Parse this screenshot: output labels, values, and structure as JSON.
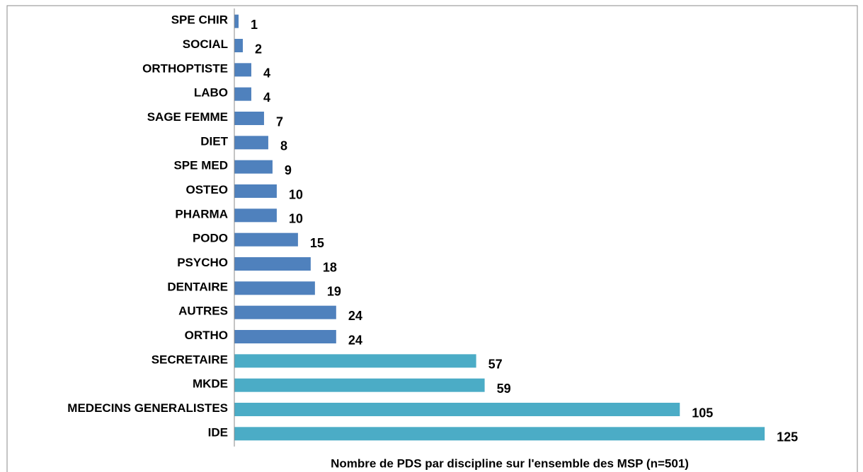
{
  "chart_data": {
    "type": "bar",
    "orientation": "horizontal",
    "title": "Nombre de PDS par discipline sur l'ensemble des MSP (n=501)",
    "categories": [
      "SPE CHIR",
      "SOCIAL",
      "ORTHOPTISTE",
      "LABO",
      "SAGE FEMME",
      "DIET",
      "SPE MED",
      "OSTEO",
      "PHARMA",
      "PODO",
      "PSYCHO",
      "DENTAIRE",
      "AUTRES",
      "ORTHO",
      "SECRETAIRE",
      "MKDE",
      "MEDECINS GENERALISTES",
      "IDE"
    ],
    "values": [
      1,
      2,
      4,
      4,
      7,
      8,
      9,
      10,
      10,
      15,
      18,
      19,
      24,
      24,
      57,
      59,
      105,
      125
    ],
    "colors": [
      "#4f81bd",
      "#4f81bd",
      "#4f81bd",
      "#4f81bd",
      "#4f81bd",
      "#4f81bd",
      "#4f81bd",
      "#4f81bd",
      "#4f81bd",
      "#4f81bd",
      "#4f81bd",
      "#4f81bd",
      "#4f81bd",
      "#4f81bd",
      "#4bacc6",
      "#4bacc6",
      "#4bacc6",
      "#4bacc6"
    ],
    "xlim": [
      0,
      140
    ]
  }
}
